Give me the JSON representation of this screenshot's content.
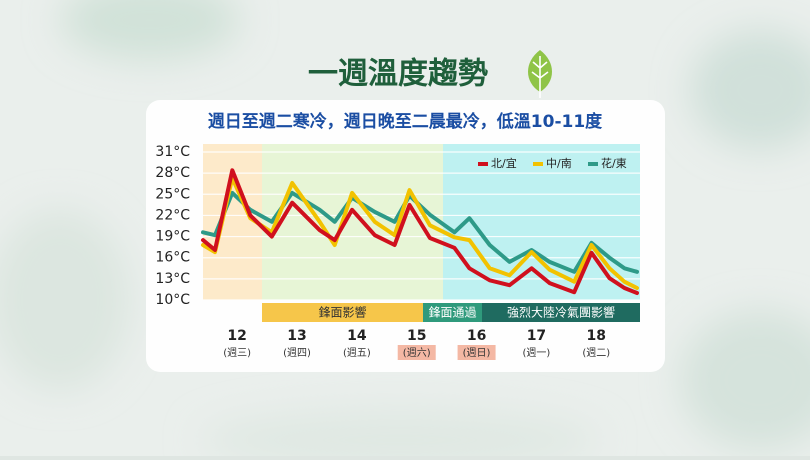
{
  "chart_data": {
    "type": "line",
    "title": "一週溫度趨勢",
    "subtitle": "週日至週二寒冷，週日晚至二晨最冷，低溫10-11度",
    "xlim": [
      11.43,
      18.73
    ],
    "xticks": [
      12,
      13,
      14,
      15,
      16,
      17,
      18
    ],
    "weekdays": [
      "(週三)",
      "(週四)",
      "(週五)",
      "(週六)",
      "(週日)",
      "(週一)",
      "(週二)"
    ],
    "weekday_highlight": [
      false,
      false,
      false,
      true,
      true,
      false,
      false
    ],
    "ylim": [
      10,
      31
    ],
    "yticks": [
      {
        "value": 10,
        "label": "10°C"
      },
      {
        "value": 13,
        "label": "13°C"
      },
      {
        "value": 16,
        "label": "16°C"
      },
      {
        "value": 19,
        "label": "19°C"
      },
      {
        "value": 22,
        "label": "22°C"
      },
      {
        "value": 25,
        "label": "25°C"
      },
      {
        "value": 28,
        "label": "28°C"
      },
      {
        "value": 31,
        "label": "31°C"
      }
    ],
    "grid": true,
    "legend": "top-right",
    "annotations": [
      "鋒面影響",
      "鋒面通過",
      "強烈大陸冷氣團影響"
    ],
    "x": [
      11.43,
      11.63,
      11.92,
      12.22,
      12.58,
      12.92,
      13.38,
      13.63,
      13.92,
      14.3,
      14.63,
      14.88,
      15.22,
      15.63,
      15.88,
      16.22,
      16.55,
      16.92,
      17.22,
      17.63,
      17.92,
      18.22,
      18.47,
      18.68
    ],
    "series": [
      {
        "name": "北/宜",
        "color": "#d0101e",
        "values": [
          18.5,
          17.1,
          28.4,
          22,
          19,
          23.8,
          19.9,
          18.5,
          22.8,
          19.2,
          17.8,
          23.5,
          18.8,
          17.4,
          14.5,
          12.8,
          12.1,
          14.5,
          12.4,
          11.1,
          16.7,
          13.1,
          11.7,
          11
        ]
      },
      {
        "name": "中/南",
        "color": "#f2c200",
        "values": [
          17.8,
          16.8,
          27.3,
          21.6,
          19.6,
          26.6,
          21.1,
          17.8,
          25.2,
          21.1,
          19.2,
          25.6,
          20.6,
          18.9,
          18.5,
          14.5,
          13.5,
          16.8,
          14.3,
          12.6,
          17.8,
          14.5,
          12.6,
          11.7
        ]
      },
      {
        "name": "花/東",
        "color": "#2e9a88",
        "values": [
          19.6,
          19.2,
          25.2,
          22.8,
          21.1,
          25.2,
          22.8,
          21.1,
          24.5,
          22.5,
          21.1,
          24.8,
          22.1,
          19.6,
          21.6,
          17.8,
          15.4,
          17.1,
          15.4,
          14,
          18.1,
          16,
          14.5,
          14
        ]
      }
    ]
  }
}
